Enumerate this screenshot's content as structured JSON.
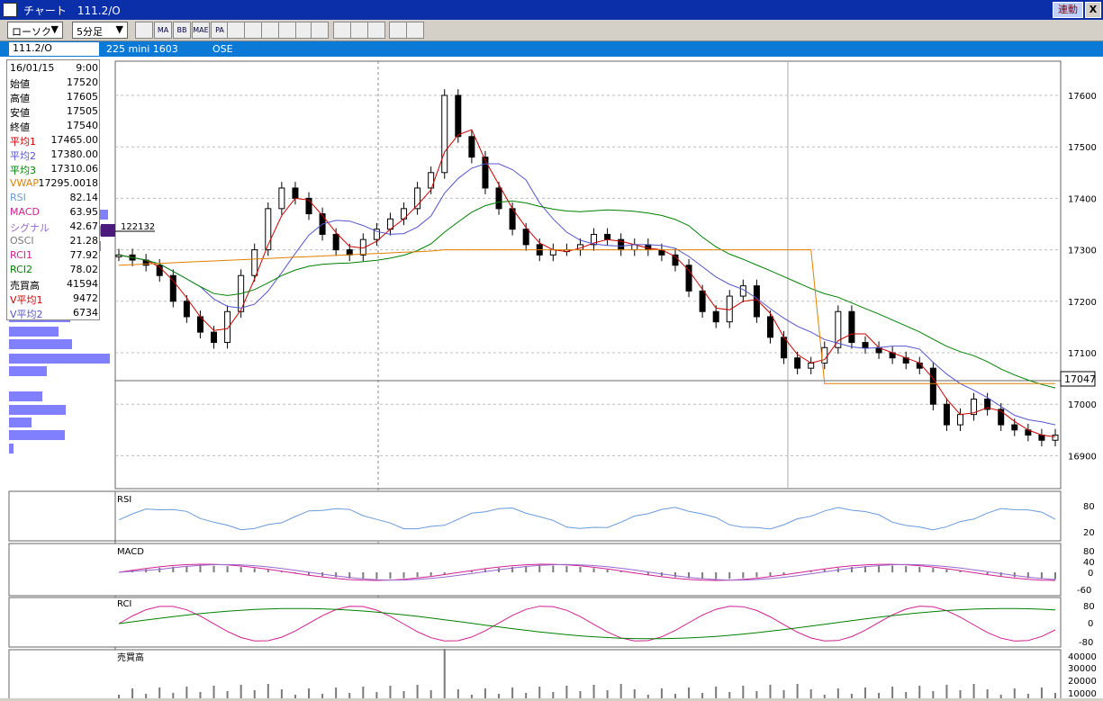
{
  "window": {
    "title": "チャート　111.2/O",
    "linked_label": "連動",
    "close_label": "X"
  },
  "toolbar": {
    "chart_type": "ローソク",
    "chart_type_arrow": "▼",
    "interval": "5分足",
    "interval_arrow": "▼",
    "buttons": [
      "tool-settings",
      "MA",
      "BB",
      "MAE",
      "PA",
      "trend",
      "pen",
      "cursor",
      "eraser",
      "indicator-settings",
      "fibonacci"
    ]
  },
  "info": {
    "symbol": "111.2/O",
    "contract": "225 mini 1603",
    "exchange": "OSE"
  },
  "data_panel": [
    {
      "k": "16/01/15",
      "v": "9:00",
      "color": "#000000"
    },
    {
      "k": "始値",
      "v": "17520",
      "color": "#000000"
    },
    {
      "k": "高値",
      "v": "17605",
      "color": "#000000"
    },
    {
      "k": "安値",
      "v": "17505",
      "color": "#000000"
    },
    {
      "k": "終値",
      "v": "17540",
      "color": "#000000"
    },
    {
      "k": "平均1",
      "v": "17465.00",
      "color": "#cc0000"
    },
    {
      "k": "平均2",
      "v": "17380.00",
      "color": "#5555cc"
    },
    {
      "k": "平均3",
      "v": "17310.06",
      "color": "#008000"
    },
    {
      "k": "VWAP",
      "v": "17295.0018",
      "color": "#e08000"
    },
    {
      "k": "RSI",
      "v": "82.14",
      "color": "#6a9ad8"
    },
    {
      "k": "MACD",
      "v": "63.95",
      "color": "#d02090"
    },
    {
      "k": "シグナル",
      "v": "42.67",
      "color": "#9966cc"
    },
    {
      "k": "OSCI",
      "v": "21.28",
      "color": "#7a7a7a"
    },
    {
      "k": "RCI1",
      "v": "77.92",
      "color": "#d02090"
    },
    {
      "k": "RCI2",
      "v": "78.02",
      "color": "#008000"
    },
    {
      "k": "売買高",
      "v": "41594",
      "color": "#000000"
    },
    {
      "k": "V平均1",
      "v": "9472",
      "color": "#cc0000"
    },
    {
      "k": "V平均2",
      "v": "6734",
      "color": "#5555cc"
    }
  ],
  "colors": {
    "candle": "#000000",
    "ma1": "#cc0000",
    "ma2": "#5555cc",
    "ma3": "#008000",
    "vwap": "#e08000",
    "rsi": "#6a9ad8",
    "macd": "#d02090",
    "signal": "#9966cc",
    "rci1": "#d02090",
    "rci2": "#008000",
    "volume_profile": "#8080ff"
  },
  "price_axis": {
    "labels": [
      "17600",
      "17500",
      "17400",
      "17300",
      "17200",
      "17100",
      "17000",
      "16900"
    ],
    "current": "17047",
    "marker_price": "122132"
  },
  "panels": {
    "rsi": {
      "title": "RSI",
      "ticks": [
        "80",
        "20"
      ]
    },
    "macd": {
      "title": "MACD",
      "ticks": [
        "80",
        "40",
        "0",
        "-60"
      ]
    },
    "rci": {
      "title": "RCI",
      "ticks": [
        "80",
        "0",
        "-80"
      ]
    },
    "volume": {
      "title": "売買高",
      "ticks": [
        "40000",
        "30000",
        "20000",
        "10000"
      ]
    }
  },
  "chart_data": {
    "type": "candlestick",
    "close_path": [
      17290,
      17280,
      17270,
      17250,
      17200,
      17170,
      17140,
      17120,
      17180,
      17250,
      17300,
      17380,
      17420,
      17400,
      17370,
      17330,
      17300,
      17290,
      17320,
      17340,
      17360,
      17380,
      17420,
      17450,
      17600,
      17520,
      17480,
      17420,
      17380,
      17340,
      17310,
      17290,
      17300,
      17300,
      17310,
      17330,
      17320,
      17300,
      17310,
      17300,
      17290,
      17270,
      17220,
      17180,
      17160,
      17210,
      17230,
      17170,
      17130,
      17090,
      17070,
      17080,
      17110,
      17180,
      17120,
      17110,
      17100,
      17090,
      17080,
      17070,
      17000,
      16960,
      16980,
      17010,
      16990,
      16960,
      16950,
      16940,
      16930,
      16940
    ]
  }
}
